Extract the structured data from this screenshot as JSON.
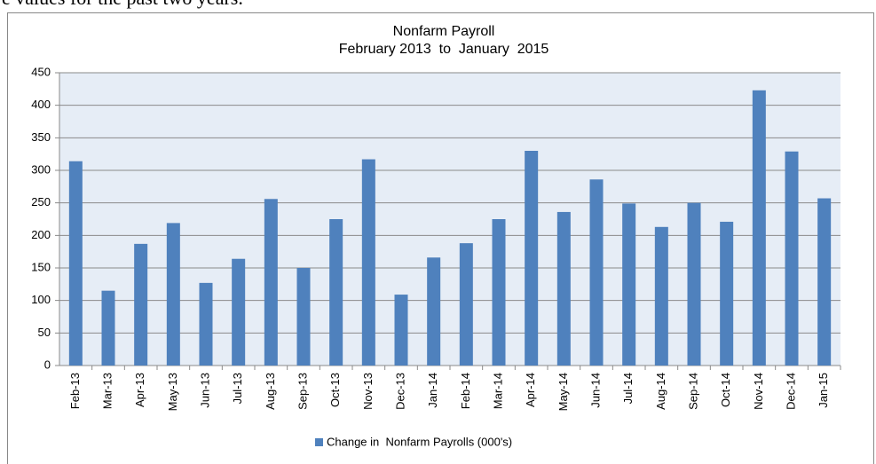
{
  "page_text": "e values for the past two years.",
  "chart_data": {
    "type": "bar",
    "title": "Nonfarm Payroll",
    "subtitle": "February 2013  to  January  2015",
    "categories": [
      "Feb-13",
      "Mar-13",
      "Apr-13",
      "May-13",
      "Jun-13",
      "Jul-13",
      "Aug-13",
      "Sep-13",
      "Oct-13",
      "Nov-13",
      "Dec-13",
      "Jan-14",
      "Feb-14",
      "Mar-14",
      "Apr-14",
      "May-14",
      "Jun-14",
      "Jul-14",
      "Aug-14",
      "Sep-14",
      "Oct-14",
      "Nov-14",
      "Dec-14",
      "Jan-15"
    ],
    "series": [
      {
        "name": "Change in  Nonfarm Payrolls (000's)",
        "color": "#4f81bd",
        "values": [
          314,
          115,
          187,
          219,
          127,
          164,
          256,
          150,
          225,
          317,
          109,
          166,
          188,
          225,
          330,
          236,
          286,
          249,
          213,
          250,
          221,
          423,
          329,
          257
        ]
      }
    ],
    "ylim": [
      0,
      450
    ],
    "yticks": [
      0,
      50,
      100,
      150,
      200,
      250,
      300,
      350,
      400,
      450
    ],
    "grid": true,
    "legend": "bottom"
  }
}
